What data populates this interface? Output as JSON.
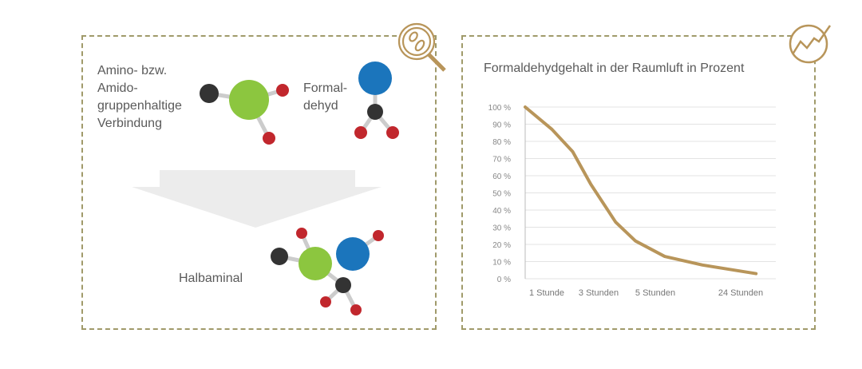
{
  "left_panel": {
    "reactant1_label": [
      "Amino- bzw.",
      "Amido-",
      "gruppenhaltige",
      "Verbindung"
    ],
    "reactant2_label": [
      "Formal-",
      "dehyd"
    ],
    "product_label": "Halbaminal"
  },
  "icons": {
    "left": "magnifier-bacteria-icon",
    "right": "rising-chart-icon",
    "accent": "#b8955a"
  },
  "chart_data": {
    "type": "line",
    "title": "Formaldehydgehalt in der Raumluft in Prozent",
    "xlabel": "",
    "ylabel": "",
    "x_ticks": [
      {
        "label": "1 Stunde",
        "value": 1
      },
      {
        "label": "3 Stunden",
        "value": 3
      },
      {
        "label": "5 Stunden",
        "value": 5
      },
      {
        "label": "24 Stunden",
        "value": 24
      }
    ],
    "y_ticks": [
      "0 %",
      "10 %",
      "20 %",
      "30 %",
      "40 %",
      "50 %",
      "60 %",
      "70 %",
      "80 %",
      "90 %",
      "100 %"
    ],
    "ylim": [
      0,
      100
    ],
    "grid": true,
    "line_color": "#b8955a",
    "series": [
      {
        "x": [
          0,
          1.2,
          2,
          2.7,
          3.6,
          4.3,
          7.1,
          15.5,
          27.6
        ],
        "y": [
          100,
          87,
          74,
          55,
          33,
          22,
          13,
          8,
          3
        ]
      }
    ]
  }
}
